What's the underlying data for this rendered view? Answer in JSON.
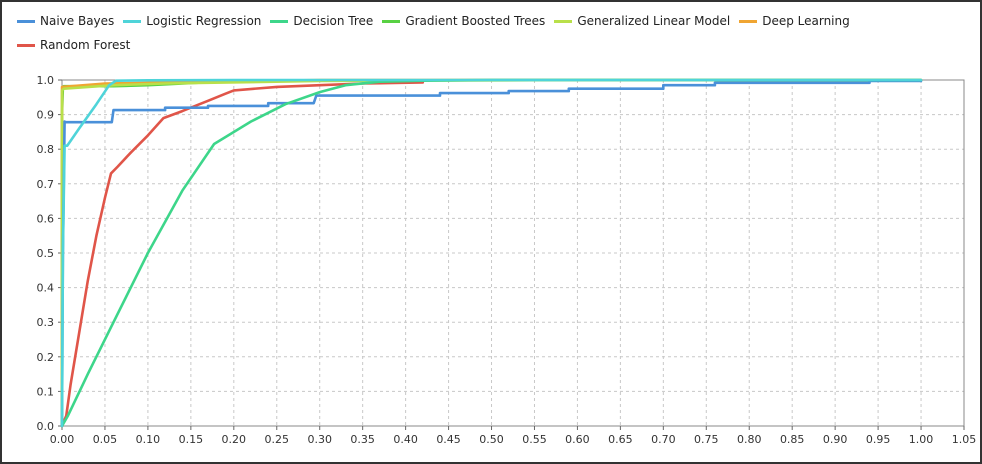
{
  "chart_data": {
    "type": "line",
    "title": "",
    "xlabel": "",
    "ylabel": "",
    "xlim": [
      0,
      1.05
    ],
    "ylim": [
      0,
      1.0
    ],
    "grid": true,
    "legend_position": "top",
    "x_ticks": [
      "0.00",
      "0.05",
      "0.10",
      "0.15",
      "0.20",
      "0.25",
      "0.30",
      "0.35",
      "0.40",
      "0.45",
      "0.50",
      "0.55",
      "0.60",
      "0.65",
      "0.70",
      "0.75",
      "0.80",
      "0.85",
      "0.90",
      "0.95",
      "1.00",
      "1.05"
    ],
    "y_ticks": [
      "0.0",
      "0.1",
      "0.2",
      "0.3",
      "0.4",
      "0.5",
      "0.6",
      "0.7",
      "0.8",
      "0.9",
      "1.0"
    ],
    "series": [
      {
        "name": "Naive Bayes",
        "color": "#4a90d9",
        "x": [
          0,
          0.001,
          0.003,
          0.003,
          0.058,
          0.06,
          0.12,
          0.12,
          0.17,
          0.17,
          0.24,
          0.24,
          0.293,
          0.296,
          0.44,
          0.44,
          0.52,
          0.52,
          0.59,
          0.59,
          0.7,
          0.7,
          0.76,
          0.76,
          0.94,
          0.94,
          1.0
        ],
        "y": [
          0,
          0.5,
          0.88,
          0.878,
          0.878,
          0.913,
          0.913,
          0.92,
          0.92,
          0.925,
          0.925,
          0.933,
          0.933,
          0.955,
          0.955,
          0.962,
          0.962,
          0.968,
          0.968,
          0.975,
          0.975,
          0.985,
          0.985,
          0.992,
          0.992,
          0.997,
          0.997
        ]
      },
      {
        "name": "Logistic Regression",
        "color": "#4fd4d9",
        "x": [
          0,
          0.001,
          0.003,
          0.006,
          0.02,
          0.04,
          0.055,
          0.063,
          0.1,
          0.2,
          0.5,
          1.0
        ],
        "y": [
          0,
          0.5,
          0.81,
          0.81,
          0.86,
          0.93,
          0.985,
          0.998,
          0.999,
          1.0,
          1.0,
          1.0
        ]
      },
      {
        "name": "Decision Tree",
        "color": "#3dd68a",
        "x": [
          0,
          0.007,
          0.03,
          0.06,
          0.1,
          0.14,
          0.177,
          0.22,
          0.26,
          0.3,
          0.33,
          0.37,
          0.42,
          0.5,
          0.6,
          0.7,
          0.8,
          0.9,
          1.0
        ],
        "y": [
          0,
          0.03,
          0.15,
          0.3,
          0.5,
          0.68,
          0.815,
          0.88,
          0.93,
          0.965,
          0.985,
          0.995,
          0.998,
          1.0,
          1.0,
          1.0,
          1.0,
          1.0,
          1.0
        ]
      },
      {
        "name": "Gradient Boosted Trees",
        "color": "#58d143",
        "x": [
          0,
          0,
          0.001,
          0.002,
          0.06,
          0.1,
          0.2,
          0.5,
          1.0
        ],
        "y": [
          0,
          0.9,
          0.98,
          0.982,
          0.982,
          0.985,
          0.997,
          1.0,
          1.0
        ]
      },
      {
        "name": "Generalized Linear Model",
        "color": "#b9e04a",
        "x": [
          0,
          0,
          0.002,
          0.06,
          0.12,
          0.3,
          0.6,
          1.0
        ],
        "y": [
          0,
          0.97,
          0.975,
          0.985,
          0.99,
          0.997,
          1.0,
          1.0
        ]
      },
      {
        "name": "Deep Learning",
        "color": "#f0a532",
        "x": [
          0,
          0,
          0.05,
          0.3,
          1.0
        ],
        "y": [
          0,
          0.98,
          0.99,
          1.0,
          1.0
        ]
      },
      {
        "name": "Random Forest",
        "color": "#e05549",
        "x": [
          0,
          0.005,
          0.01,
          0.02,
          0.03,
          0.04,
          0.05,
          0.057,
          0.065,
          0.08,
          0.1,
          0.118,
          0.14,
          0.17,
          0.19,
          0.2,
          0.25,
          0.3,
          0.35,
          0.42
        ],
        "y": [
          0,
          0.03,
          0.12,
          0.27,
          0.42,
          0.55,
          0.66,
          0.73,
          0.75,
          0.79,
          0.84,
          0.89,
          0.91,
          0.94,
          0.96,
          0.97,
          0.98,
          0.985,
          0.99,
          0.993
        ]
      }
    ]
  }
}
